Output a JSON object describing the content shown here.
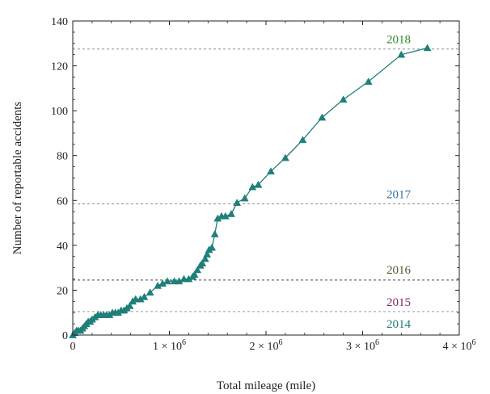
{
  "chart_data": {
    "type": "line",
    "title": "",
    "xlabel": "Total mileage (mile)",
    "ylabel": "Number of reportable accidents",
    "xlim": [
      0,
      4000000
    ],
    "ylim": [
      0,
      140
    ],
    "x_ticks": [
      {
        "value": 0,
        "base": "0",
        "exp": ""
      },
      {
        "value": 1000000,
        "base": "1 × 10",
        "exp": "6"
      },
      {
        "value": 2000000,
        "base": "2 × 10",
        "exp": "6"
      },
      {
        "value": 3000000,
        "base": "3 × 10",
        "exp": "6"
      },
      {
        "value": 4000000,
        "base": "4 × 10",
        "exp": "6"
      }
    ],
    "y_ticks": [
      0,
      20,
      40,
      60,
      80,
      100,
      120,
      140
    ],
    "series": [
      {
        "color": "#1f7f7a",
        "marker": "triangle",
        "points": [
          [
            0,
            0
          ],
          [
            20000,
            1
          ],
          [
            40000,
            2
          ],
          [
            60000,
            2
          ],
          [
            80000,
            2
          ],
          [
            100000,
            3
          ],
          [
            120000,
            4
          ],
          [
            140000,
            5
          ],
          [
            160000,
            6
          ],
          [
            180000,
            6
          ],
          [
            200000,
            7
          ],
          [
            230000,
            8
          ],
          [
            260000,
            9
          ],
          [
            290000,
            9
          ],
          [
            320000,
            9
          ],
          [
            350000,
            9
          ],
          [
            380000,
            9
          ],
          [
            410000,
            10
          ],
          [
            440000,
            10
          ],
          [
            470000,
            10
          ],
          [
            500000,
            11
          ],
          [
            530000,
            11
          ],
          [
            560000,
            12
          ],
          [
            590000,
            13
          ],
          [
            620000,
            15
          ],
          [
            650000,
            16
          ],
          [
            700000,
            16
          ],
          [
            740000,
            17
          ],
          [
            800000,
            19
          ],
          [
            880000,
            22
          ],
          [
            930000,
            23
          ],
          [
            980000,
            24
          ],
          [
            1050000,
            24
          ],
          [
            1100000,
            24
          ],
          [
            1150000,
            25
          ],
          [
            1200000,
            25
          ],
          [
            1240000,
            26
          ],
          [
            1260000,
            27
          ],
          [
            1290000,
            29
          ],
          [
            1320000,
            31
          ],
          [
            1340000,
            32
          ],
          [
            1370000,
            34
          ],
          [
            1390000,
            36
          ],
          [
            1410000,
            38
          ],
          [
            1440000,
            39
          ],
          [
            1470000,
            45
          ],
          [
            1500000,
            52
          ],
          [
            1540000,
            53
          ],
          [
            1580000,
            53
          ],
          [
            1640000,
            54
          ],
          [
            1700000,
            59
          ],
          [
            1780000,
            61
          ],
          [
            1860000,
            66
          ],
          [
            1920000,
            67
          ],
          [
            2050000,
            73
          ],
          [
            2200000,
            79
          ],
          [
            2380000,
            87
          ],
          [
            2580000,
            97
          ],
          [
            2800000,
            105
          ],
          [
            3060000,
            113
          ],
          [
            3400000,
            125
          ],
          [
            3670000,
            128
          ]
        ]
      }
    ],
    "reference_lines": [
      {
        "label": "2018",
        "y": 127.5,
        "color": "#8c8c8c",
        "label_color": "#2e8b2e"
      },
      {
        "label": "2017",
        "y": 58.5,
        "color": "#8c8c8c",
        "label_color": "#3a6ea5"
      },
      {
        "label": "2016",
        "y": 24.5,
        "color": "#444444",
        "label_color": "#5a5a2a"
      },
      {
        "label": "2015",
        "y": 10.5,
        "color": "#9a9aa8",
        "label_color": "#7a2f6e"
      },
      {
        "label": "2014",
        "y": 0,
        "color": "#1f7f7a",
        "label_color": "#1f7f7a"
      }
    ],
    "grid": false,
    "legend": "none"
  }
}
